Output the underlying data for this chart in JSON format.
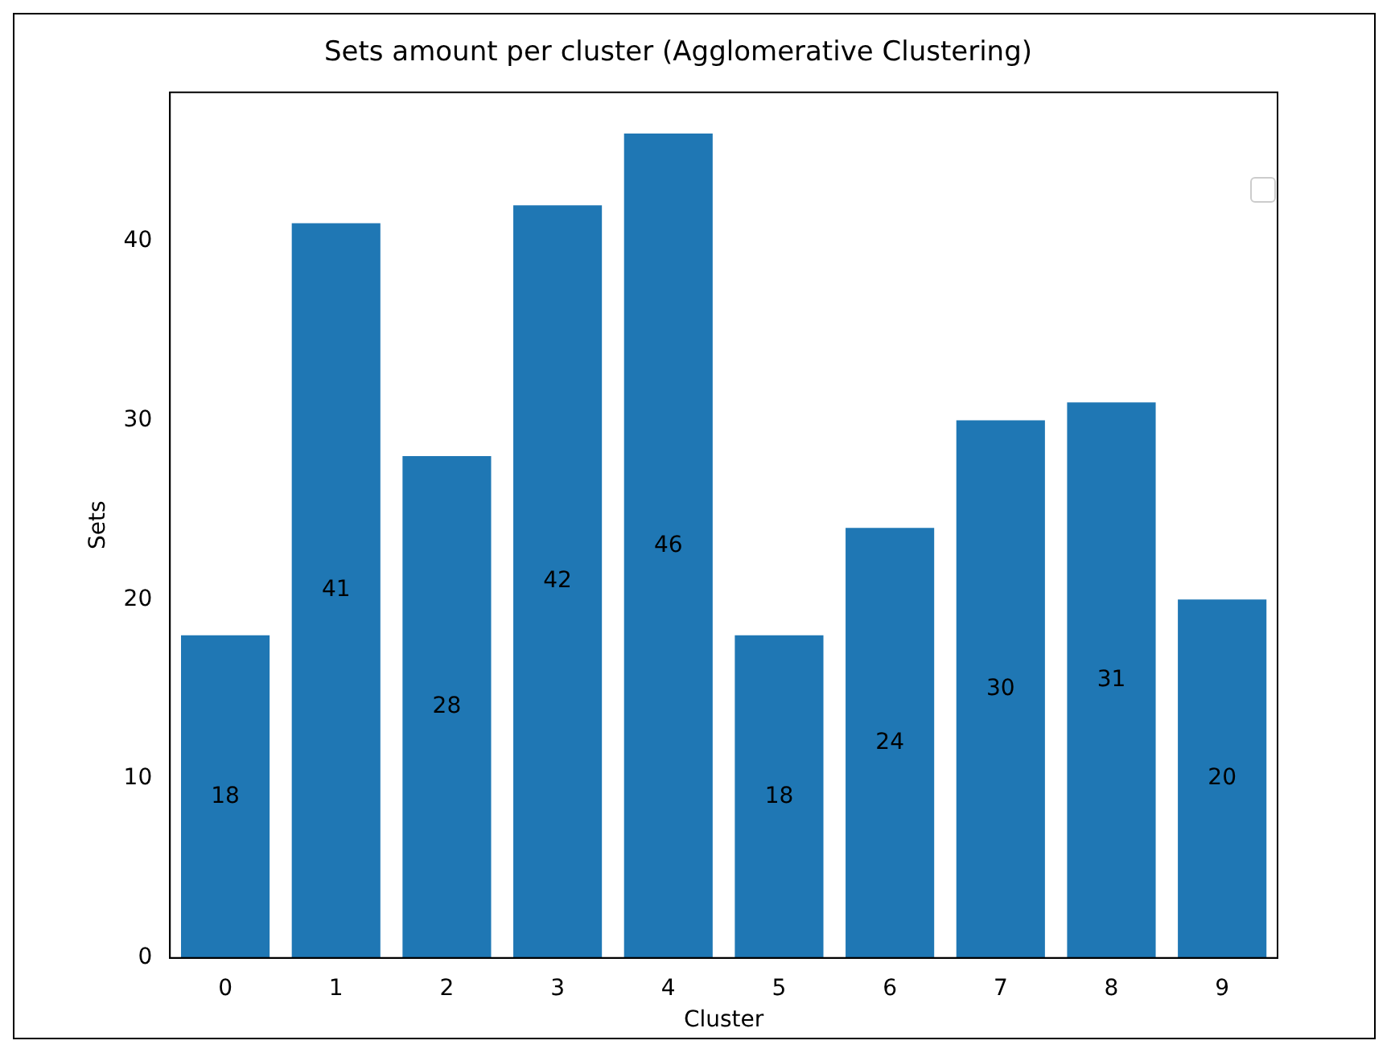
{
  "chart_data": {
    "type": "bar",
    "title": "Sets amount per cluster (Agglomerative Clustering)",
    "xlabel": "Cluster",
    "ylabel": "Sets",
    "categories": [
      "0",
      "1",
      "2",
      "3",
      "4",
      "5",
      "6",
      "7",
      "8",
      "9"
    ],
    "values": [
      18,
      41,
      28,
      42,
      46,
      18,
      24,
      30,
      31,
      20
    ],
    "color": "#1f77b4",
    "ylim": [
      0,
      48.3
    ],
    "yticks": [
      0,
      10,
      20,
      30,
      40
    ],
    "grid": false,
    "data_labels": true
  }
}
